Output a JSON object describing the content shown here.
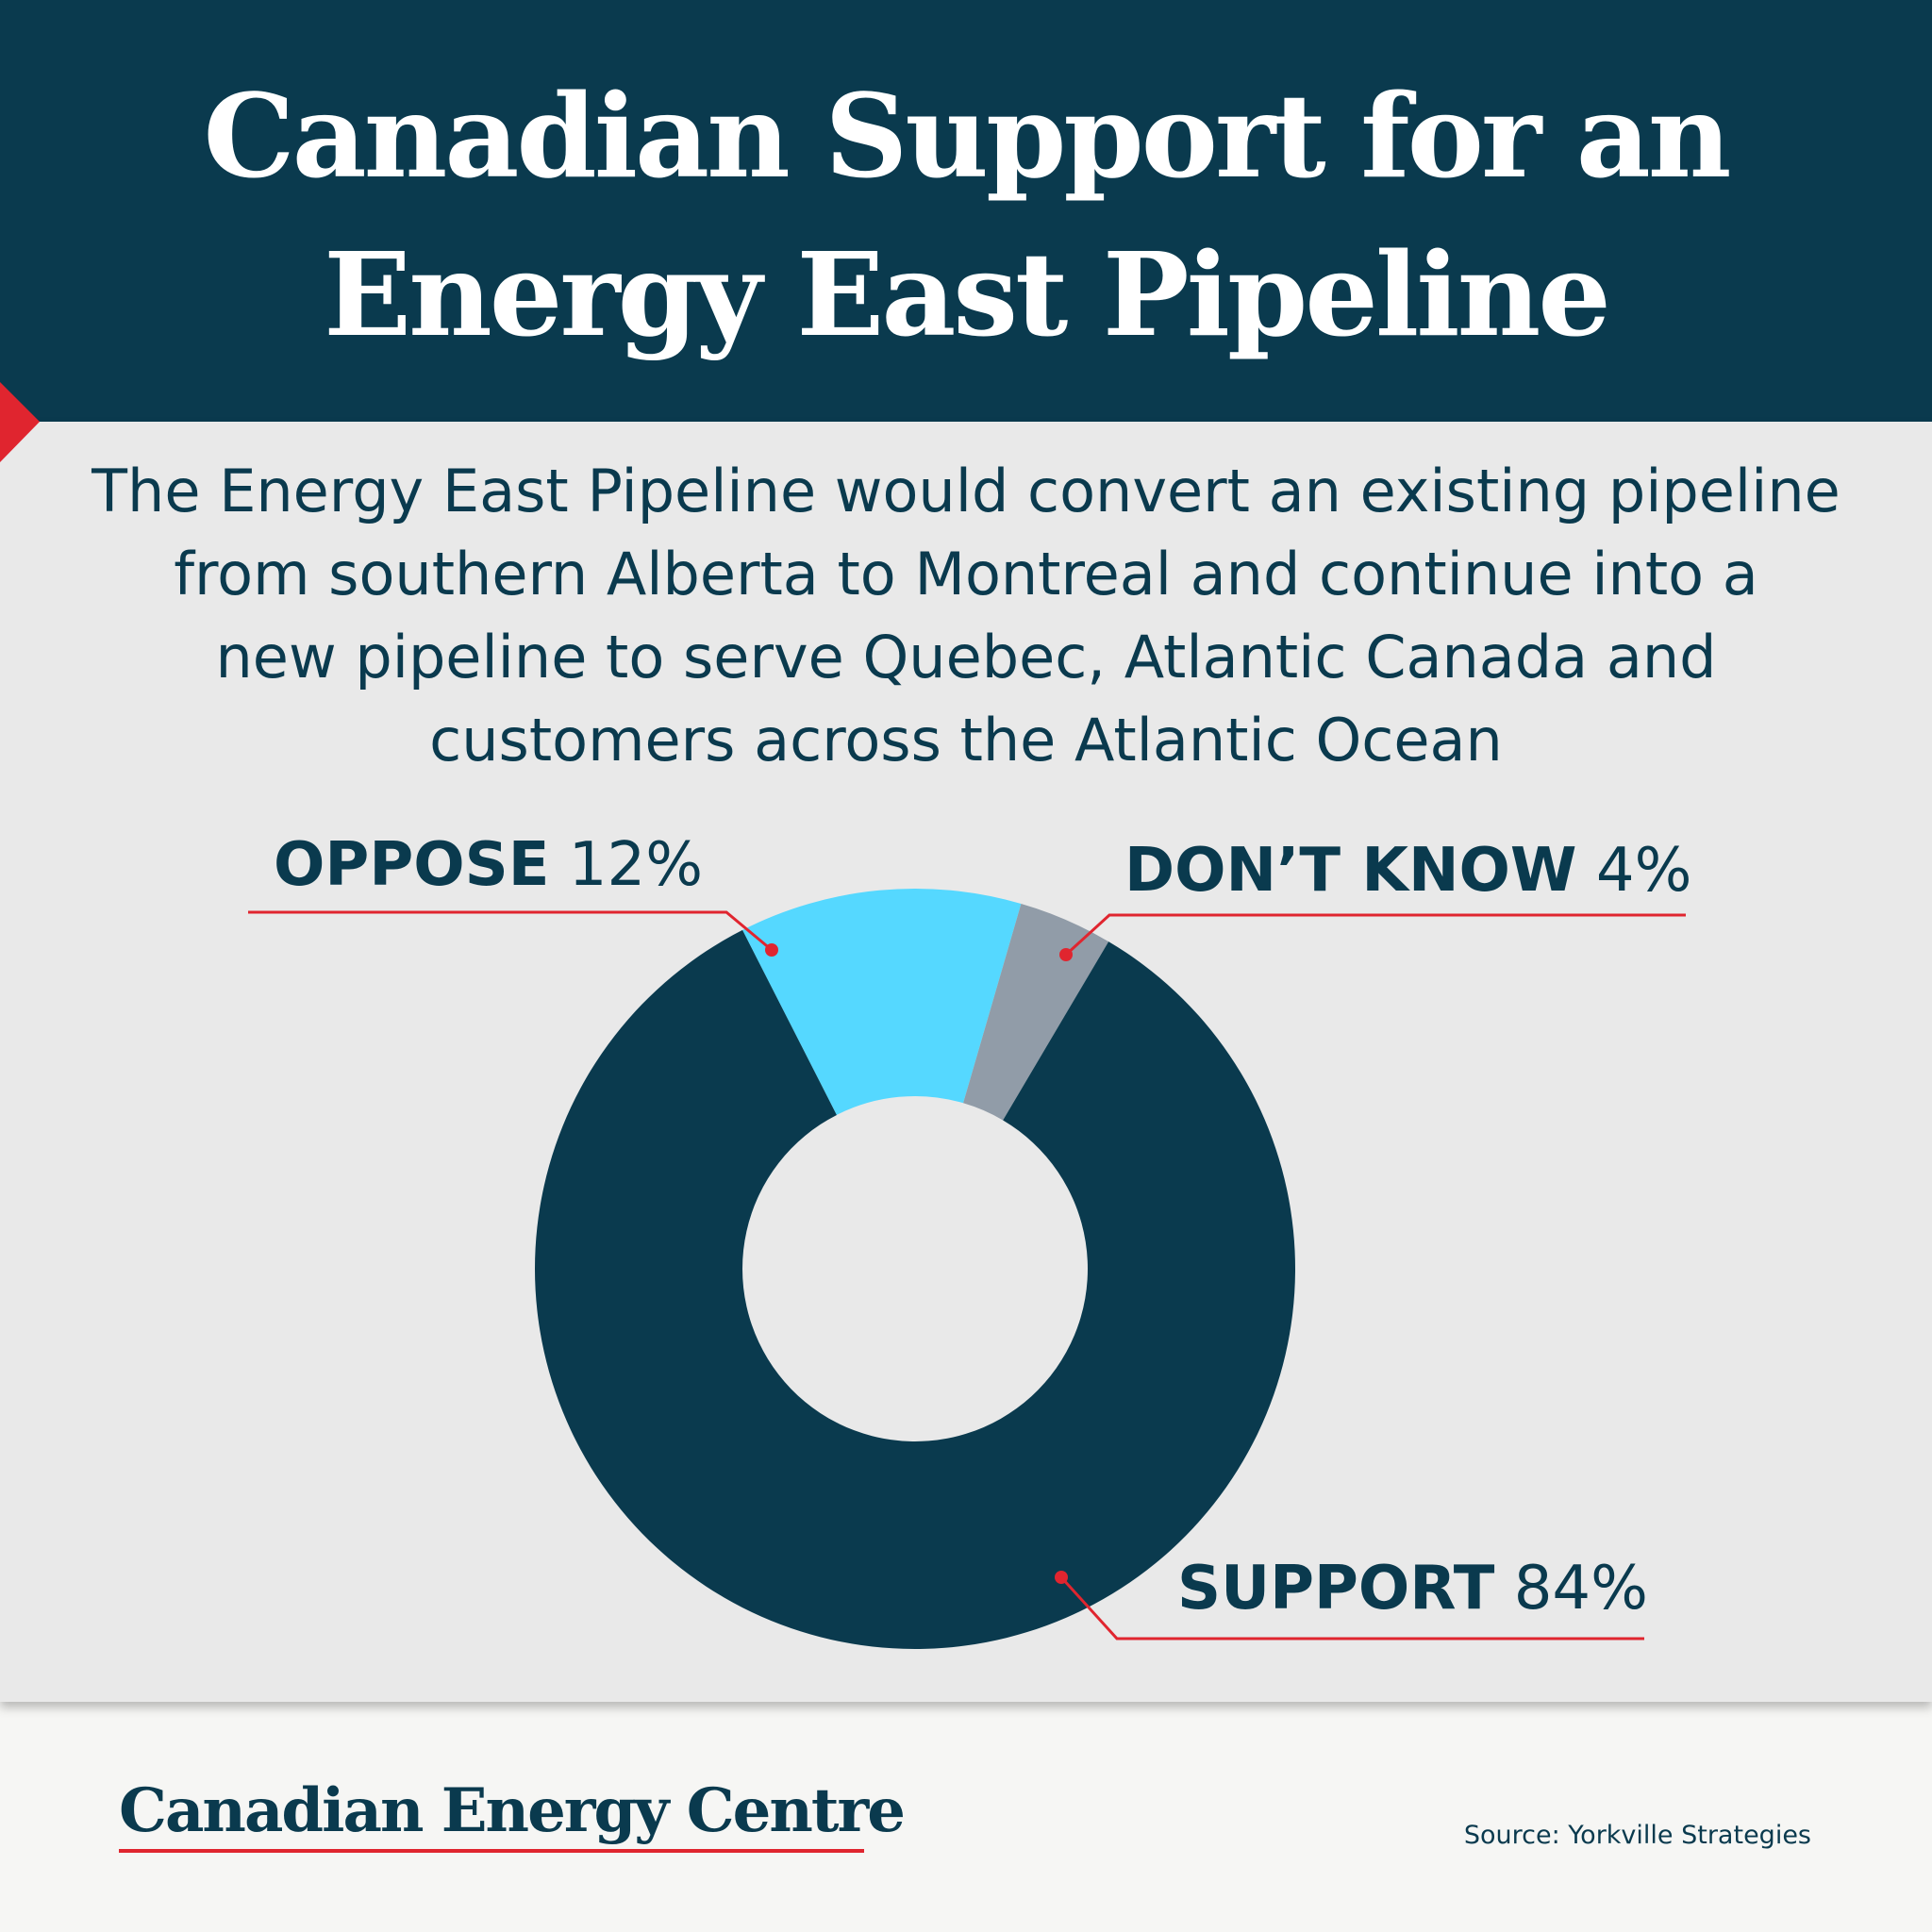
{
  "header": {
    "title_line1": "Canadian Support for an",
    "title_line2": "Energy East Pipeline"
  },
  "description": {
    "line1": "The Energy East Pipeline would convert an existing pipeline",
    "line2": "from southern Alberta to Montreal and continue into a",
    "line3": "new pipeline to serve Quebec, Atlantic Canada and",
    "line4": "customers across the Atlantic Ocean"
  },
  "chart_data": {
    "type": "pie",
    "donut": true,
    "slices": [
      {
        "label": "OPPOSE",
        "value": 12,
        "value_label": "12%",
        "color": "#55d8ff"
      },
      {
        "label": "DON’T KNOW",
        "value": 4,
        "value_label": "4%",
        "color": "#919ca8"
      },
      {
        "label": "SUPPORT",
        "value": 84,
        "value_label": "84%",
        "color": "#0a3a4e"
      }
    ],
    "leader_line_color": "#e0252f"
  },
  "footer": {
    "brand": "Canadian Energy Centre",
    "source": "Source: Yorkville Strategies"
  },
  "colors": {
    "header_bg": "#0a3a4e",
    "panel_bg": "#e9e9e9",
    "accent_red": "#e0252f"
  }
}
